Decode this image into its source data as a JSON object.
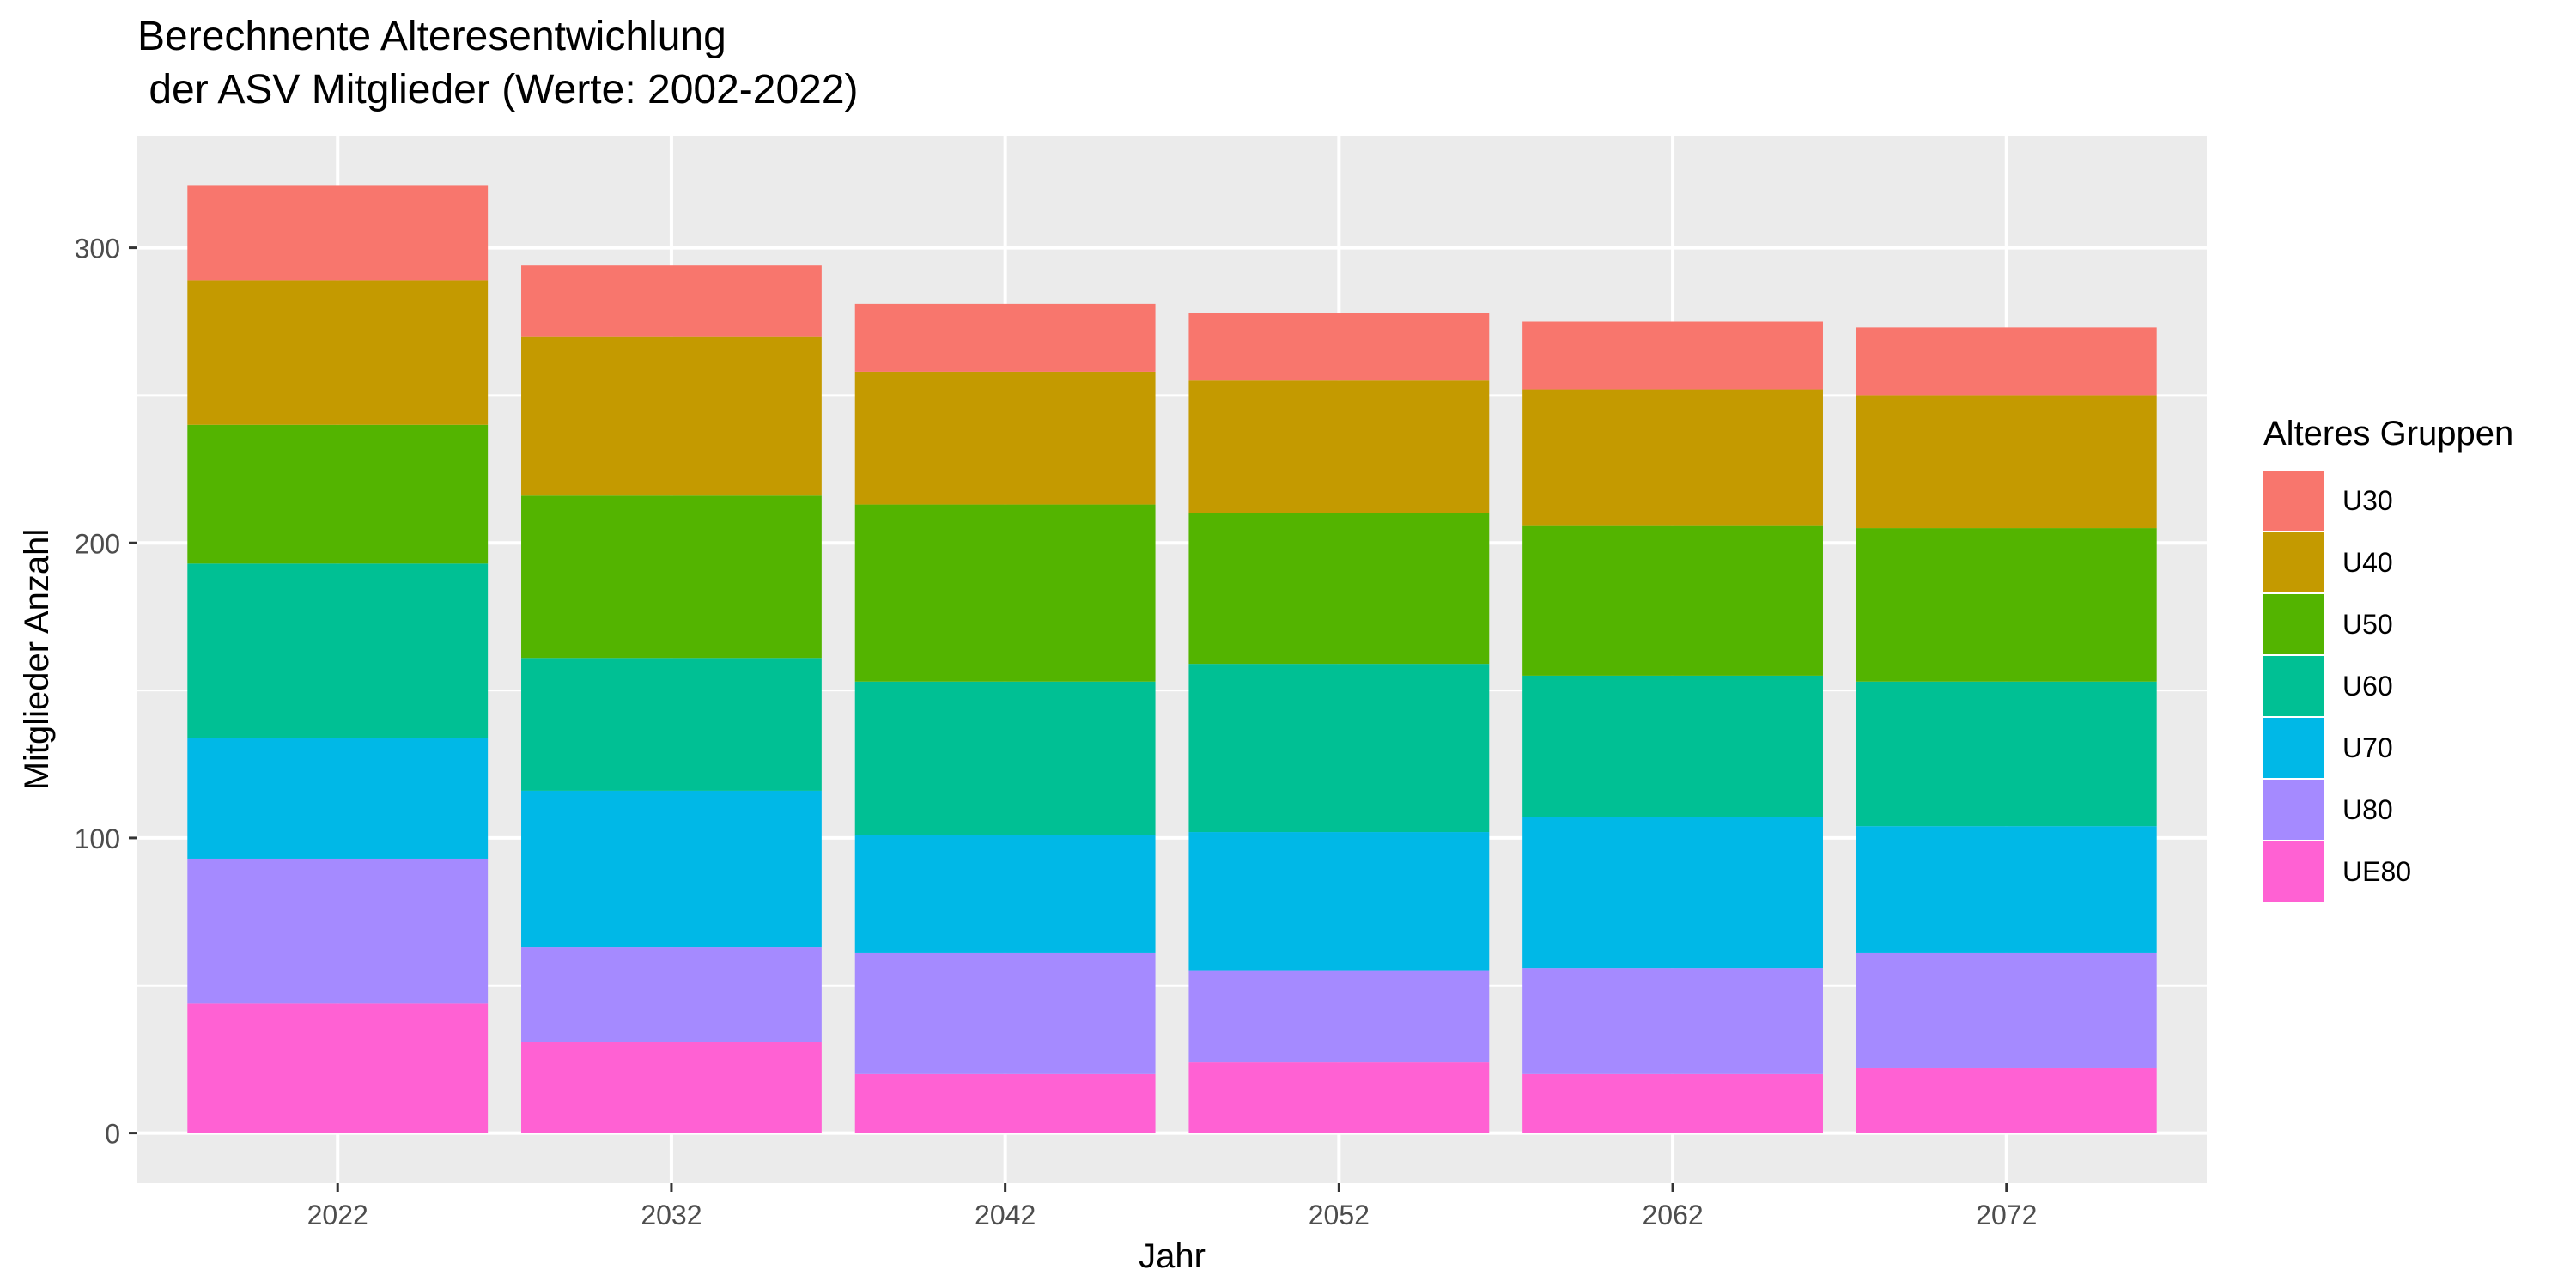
{
  "chart_data": {
    "type": "bar",
    "stacked": true,
    "title": "Berechnente Alteresentwichlung\n der ASV Mitglieder (Werte: 2002-2022)",
    "xlabel": "Jahr",
    "ylabel": "Mitglieder Anzahl",
    "categories": [
      "2022",
      "2032",
      "2042",
      "2052",
      "2062",
      "2072"
    ],
    "ylim": [
      -17,
      338
    ],
    "yticks": [
      0,
      100,
      200,
      300
    ],
    "grid": true,
    "legend": {
      "title": "Alteres Gruppen",
      "placement": "right"
    },
    "series": [
      {
        "name": "UE80",
        "color": "#FF61D3",
        "values": [
          44,
          31,
          20,
          24,
          20,
          22
        ]
      },
      {
        "name": "U80",
        "color": "#A58AFF",
        "values": [
          49,
          32,
          41,
          31,
          36,
          39
        ]
      },
      {
        "name": "U70",
        "color": "#00B8E7",
        "values": [
          41,
          53,
          40,
          47,
          51,
          43
        ]
      },
      {
        "name": "U60",
        "color": "#00C094",
        "values": [
          59,
          45,
          52,
          57,
          48,
          49
        ]
      },
      {
        "name": "U50",
        "color": "#53B400",
        "values": [
          47,
          55,
          60,
          51,
          51,
          52
        ]
      },
      {
        "name": "U40",
        "color": "#C49A00",
        "values": [
          49,
          54,
          45,
          45,
          46,
          45
        ]
      },
      {
        "name": "U30",
        "color": "#F8766D",
        "values": [
          32,
          24,
          23,
          23,
          23,
          23
        ]
      }
    ],
    "legend_order": [
      "U30",
      "U40",
      "U50",
      "U60",
      "U70",
      "U80",
      "UE80"
    ]
  }
}
